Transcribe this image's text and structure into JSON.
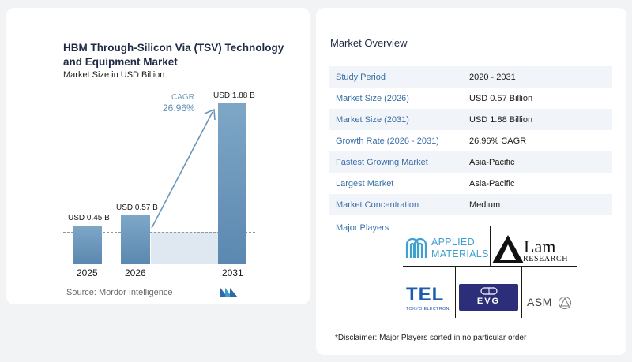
{
  "chart_data": {
    "type": "bar",
    "title": "HBM Through-Silicon Via (TSV) Technology and Equipment Market",
    "subtitle": "Market Size in USD Billion",
    "categories": [
      "2025",
      "2026",
      "2031"
    ],
    "values": [
      0.45,
      0.57,
      1.88
    ],
    "value_labels": [
      "USD 0.45 B",
      "USD 0.57 B",
      "USD 1.88 B"
    ],
    "cagr_label": "CAGR",
    "cagr_value": "26.96%",
    "ylim": [
      0,
      1.88
    ],
    "colors": {
      "bar": "#6a96bb",
      "bg_band": "#dfe8f0",
      "accent": "#5b8db8"
    }
  },
  "source": "Source:  Mordor Intelligence",
  "overview": {
    "title": "Market Overview",
    "rows": [
      {
        "key": "Study Period",
        "value": "2020 - 2031"
      },
      {
        "key": "Market Size (2026)",
        "value": "USD 0.57 Billion"
      },
      {
        "key": "Market Size (2031)",
        "value": "USD 1.88 Billion"
      },
      {
        "key": "Growth Rate (2026 - 2031)",
        "value": "26.96% CAGR"
      },
      {
        "key": "Fastest Growing Market",
        "value": "Asia-Pacific"
      },
      {
        "key": "Largest Market",
        "value": "Asia-Pacific"
      },
      {
        "key": "Market Concentration",
        "value": "Medium"
      }
    ]
  },
  "players": {
    "title": "Major Players",
    "applied_line1": "APPLIED",
    "applied_line2": "MATERIALS",
    "lam": "Lam",
    "lam_sub": "RESEARCH",
    "tel": "TEL",
    "tel_sub": "TOKYO ELECTRON",
    "evg": "EVG",
    "asm": "ASM"
  },
  "disclaimer": "*Disclaimer: Major Players sorted in no particular order"
}
